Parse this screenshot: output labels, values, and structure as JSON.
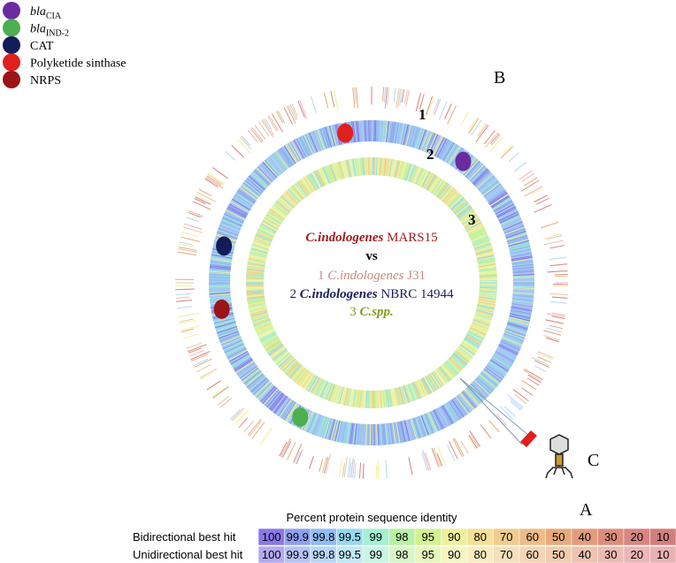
{
  "legend": [
    {
      "label": "bla",
      "sub": "CIA",
      "color": "#6b2c9e"
    },
    {
      "label": "bla",
      "sub": "IND-2",
      "color": "#4caf50"
    },
    {
      "label": "CAT",
      "color": "#141c5a"
    },
    {
      "label": "Polyketide sinthase",
      "color": "#e0201c"
    },
    {
      "label": "NRPS",
      "color": "#9a1418"
    }
  ],
  "panel_labels": {
    "a": "A",
    "b": "B",
    "c": "C"
  },
  "ring_numbers": [
    "1",
    "2",
    "3"
  ],
  "center": {
    "reference": {
      "species": "C.indologenes",
      "strain": "MARS15",
      "color": "#a01c1c"
    },
    "vs": "vs",
    "comparisons": [
      {
        "number": "1",
        "species": "C.indologenes",
        "strain": "J31",
        "color": "#c98a80"
      },
      {
        "number": "2",
        "species": "C.indologenes",
        "strain": "NBRC 14944",
        "color": "#1a1f5a"
      },
      {
        "number": "3",
        "species": "C.spp.",
        "color": "#8a9a20"
      }
    ]
  },
  "identity_table": {
    "title": "Percent protein sequence identity",
    "values": [
      "100",
      "99.9",
      "99.8",
      "99.5",
      "99",
      "98",
      "95",
      "90",
      "80",
      "70",
      "60",
      "50",
      "40",
      "30",
      "20",
      "10"
    ],
    "rows": [
      {
        "label": "Bidirectional best hit",
        "colors": [
          "#8a78e8",
          "#8f9ff0",
          "#8fbcf2",
          "#98d8f0",
          "#a4f0d0",
          "#b8f0a4",
          "#d4f094",
          "#eef09c",
          "#f4e096",
          "#f0cc8e",
          "#eebc88",
          "#e8aa7c",
          "#e29c7c",
          "#dc8e7c",
          "#d88682",
          "#d27e7e"
        ]
      },
      {
        "label": "Unidirectional best hit",
        "colors": [
          "#b4aaf2",
          "#b6c4f6",
          "#b8d6f6",
          "#c0e8f6",
          "#c8f6e2",
          "#d6f6c8",
          "#e6f6bc",
          "#f6f6c2",
          "#f8ecc0",
          "#f6e0bc",
          "#f4d6b6",
          "#f2ccae",
          "#eec4b0",
          "#ecbcb2",
          "#eab6b6",
          "#e8b2b2"
        ]
      }
    ]
  }
}
